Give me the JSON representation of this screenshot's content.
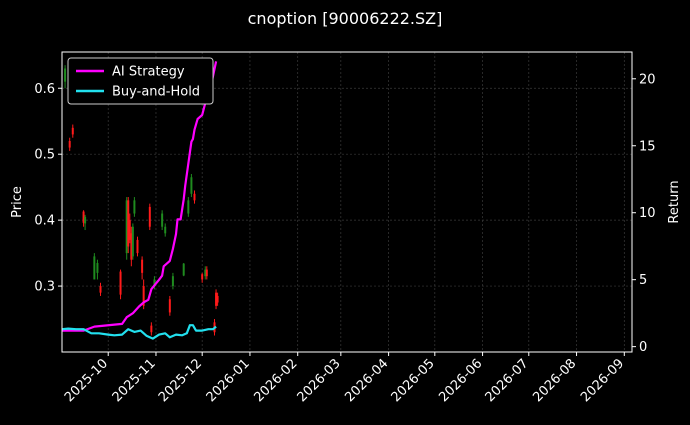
{
  "chart_data": {
    "type": "line",
    "title": "cnoption [90006222.SZ]",
    "ylabel_left": "Price",
    "ylabel_right": "Return",
    "xlim": [
      "2025-09-01",
      "2026-09-06"
    ],
    "ylim_left": [
      0.2,
      0.655
    ],
    "ylim_right": [
      -0.4,
      22.0
    ],
    "x_ticks": [
      "2025-10-01",
      "2025-11-01",
      "2025-12-01",
      "2026-01-01",
      "2026-02-01",
      "2026-03-01",
      "2026-04-01",
      "2026-05-01",
      "2026-06-01",
      "2026-07-01",
      "2026-08-01",
      "2026-09-01"
    ],
    "x_tick_labels": [
      "2025-10",
      "2025-11",
      "2025-12",
      "2026-01",
      "2026-02",
      "2026-03",
      "2026-04",
      "2026-05",
      "2026-06",
      "2026-07",
      "2026-08",
      "2026-09"
    ],
    "y_ticks_left": [
      0.3,
      0.4,
      0.5,
      0.6
    ],
    "y_tick_labels_left": [
      "0.3",
      "0.4",
      "0.5",
      "0.6"
    ],
    "y_ticks_right": [
      0,
      5,
      10,
      15,
      20
    ],
    "y_tick_labels_right": [
      "0",
      "5",
      "10",
      "15",
      "20"
    ],
    "grid": true,
    "legend_position": "top-left",
    "colors": {
      "background": "#000000",
      "up_candle": "#1f8b1f",
      "down_candle": "#ff1a1a",
      "ai_strategy": "#ff00ff",
      "buy_and_hold": "#22e0ee",
      "grid": "#3a3a3a"
    },
    "series": [
      {
        "name": "AI Strategy",
        "axis": "right",
        "points": [
          [
            "2025-09-01",
            1.2
          ],
          [
            "2025-09-15",
            1.2
          ],
          [
            "2025-09-22",
            1.5
          ],
          [
            "2025-10-10",
            1.7
          ],
          [
            "2025-10-13",
            2.2
          ],
          [
            "2025-10-17",
            2.5
          ],
          [
            "2025-10-21",
            3.0
          ],
          [
            "2025-10-24",
            3.3
          ],
          [
            "2025-10-27",
            3.5
          ],
          [
            "2025-10-29",
            4.3
          ],
          [
            "2025-11-03",
            5.0
          ],
          [
            "2025-11-05",
            5.3
          ],
          [
            "2025-11-06",
            6.0
          ],
          [
            "2025-11-10",
            6.4
          ],
          [
            "2025-11-12",
            7.3
          ],
          [
            "2025-11-14",
            8.4
          ],
          [
            "2025-11-15",
            9.5
          ],
          [
            "2025-11-17",
            9.5
          ],
          [
            "2025-11-19",
            11.0
          ],
          [
            "2025-11-20",
            12.0
          ],
          [
            "2025-11-24",
            15.3
          ],
          [
            "2025-11-25",
            15.5
          ],
          [
            "2025-11-26",
            16.2
          ],
          [
            "2025-11-28",
            17.0
          ],
          [
            "2025-12-01",
            17.3
          ],
          [
            "2025-12-03",
            18.2
          ],
          [
            "2025-12-05",
            18.6
          ],
          [
            "2025-12-08",
            20.2
          ],
          [
            "2025-12-10",
            21.3
          ]
        ]
      },
      {
        "name": "Buy-and-Hold",
        "axis": "right",
        "points": [
          [
            "2025-09-01",
            1.3
          ],
          [
            "2025-09-05",
            1.35
          ],
          [
            "2025-09-10",
            1.3
          ],
          [
            "2025-09-15",
            1.3
          ],
          [
            "2025-09-20",
            1.0
          ],
          [
            "2025-09-25",
            1.0
          ],
          [
            "2025-10-01",
            0.9
          ],
          [
            "2025-10-05",
            0.85
          ],
          [
            "2025-10-10",
            0.9
          ],
          [
            "2025-10-14",
            1.3
          ],
          [
            "2025-10-18",
            1.1
          ],
          [
            "2025-10-22",
            1.2
          ],
          [
            "2025-10-26",
            0.8
          ],
          [
            "2025-10-30",
            0.6
          ],
          [
            "2025-11-03",
            0.9
          ],
          [
            "2025-11-07",
            1.0
          ],
          [
            "2025-11-10",
            0.7
          ],
          [
            "2025-11-14",
            0.9
          ],
          [
            "2025-11-18",
            0.85
          ],
          [
            "2025-11-21",
            1.0
          ],
          [
            "2025-11-23",
            1.6
          ],
          [
            "2025-11-25",
            1.6
          ],
          [
            "2025-11-27",
            1.2
          ],
          [
            "2025-12-01",
            1.2
          ],
          [
            "2025-12-05",
            1.3
          ],
          [
            "2025-12-08",
            1.3
          ],
          [
            "2025-12-10",
            1.5
          ]
        ]
      }
    ],
    "candles": [
      {
        "date": "2025-09-03",
        "open": 0.61,
        "close": 0.63,
        "high": 0.635,
        "low": 0.6
      },
      {
        "date": "2025-09-06",
        "open": 0.52,
        "close": 0.51,
        "high": 0.525,
        "low": 0.505
      },
      {
        "date": "2025-09-08",
        "open": 0.54,
        "close": 0.53,
        "high": 0.545,
        "low": 0.525
      },
      {
        "date": "2025-09-15",
        "open": 0.413,
        "close": 0.396,
        "high": 0.415,
        "low": 0.39
      },
      {
        "date": "2025-09-16",
        "open": 0.395,
        "close": 0.405,
        "high": 0.408,
        "low": 0.385
      },
      {
        "date": "2025-09-22",
        "open": 0.31,
        "close": 0.345,
        "high": 0.35,
        "low": 0.31
      },
      {
        "date": "2025-09-24",
        "open": 0.32,
        "close": 0.335,
        "high": 0.34,
        "low": 0.31
      },
      {
        "date": "2025-09-26",
        "open": 0.3,
        "close": 0.29,
        "high": 0.305,
        "low": 0.285
      },
      {
        "date": "2025-10-09",
        "open": 0.322,
        "close": 0.287,
        "high": 0.325,
        "low": 0.28
      },
      {
        "date": "2025-10-13",
        "open": 0.35,
        "close": 0.43,
        "high": 0.435,
        "low": 0.34
      },
      {
        "date": "2025-10-14",
        "open": 0.43,
        "close": 0.36,
        "high": 0.435,
        "low": 0.35
      },
      {
        "date": "2025-10-15",
        "open": 0.4,
        "close": 0.37,
        "high": 0.41,
        "low": 0.365
      },
      {
        "date": "2025-10-16",
        "open": 0.38,
        "close": 0.34,
        "high": 0.39,
        "low": 0.33
      },
      {
        "date": "2025-10-17",
        "open": 0.345,
        "close": 0.39,
        "high": 0.395,
        "low": 0.34
      },
      {
        "date": "2025-10-18",
        "open": 0.41,
        "close": 0.43,
        "high": 0.435,
        "low": 0.405
      },
      {
        "date": "2025-10-20",
        "open": 0.37,
        "close": 0.35,
        "high": 0.375,
        "low": 0.345
      },
      {
        "date": "2025-10-23",
        "open": 0.34,
        "close": 0.32,
        "high": 0.345,
        "low": 0.31
      },
      {
        "date": "2025-10-24",
        "open": 0.3,
        "close": 0.27,
        "high": 0.31,
        "low": 0.265
      },
      {
        "date": "2025-10-28",
        "open": 0.42,
        "close": 0.39,
        "high": 0.425,
        "low": 0.385
      },
      {
        "date": "2025-10-29",
        "open": 0.24,
        "close": 0.23,
        "high": 0.245,
        "low": 0.225
      },
      {
        "date": "2025-10-31",
        "open": 0.3,
        "close": 0.31,
        "high": 0.315,
        "low": 0.295
      },
      {
        "date": "2025-11-05",
        "open": 0.39,
        "close": 0.41,
        "high": 0.415,
        "low": 0.385
      },
      {
        "date": "2025-11-07",
        "open": 0.38,
        "close": 0.39,
        "high": 0.395,
        "low": 0.375
      },
      {
        "date": "2025-11-10",
        "open": 0.28,
        "close": 0.26,
        "high": 0.285,
        "low": 0.255
      },
      {
        "date": "2025-11-12",
        "open": 0.3,
        "close": 0.315,
        "high": 0.32,
        "low": 0.295
      },
      {
        "date": "2025-11-19",
        "open": 0.316,
        "close": 0.334,
        "high": 0.335,
        "low": 0.315
      },
      {
        "date": "2025-11-22",
        "open": 0.41,
        "close": 0.43,
        "high": 0.435,
        "low": 0.405
      },
      {
        "date": "2025-11-24",
        "open": 0.44,
        "close": 0.465,
        "high": 0.47,
        "low": 0.435
      },
      {
        "date": "2025-11-26",
        "open": 0.44,
        "close": 0.43,
        "high": 0.445,
        "low": 0.425
      },
      {
        "date": "2025-12-01",
        "open": 0.318,
        "close": 0.31,
        "high": 0.32,
        "low": 0.305
      },
      {
        "date": "2025-12-03",
        "open": 0.315,
        "close": 0.325,
        "high": 0.33,
        "low": 0.31
      },
      {
        "date": "2025-12-04",
        "open": 0.325,
        "close": 0.315,
        "high": 0.33,
        "low": 0.31
      },
      {
        "date": "2025-12-09",
        "open": 0.245,
        "close": 0.23,
        "high": 0.25,
        "low": 0.225
      },
      {
        "date": "2025-12-10",
        "open": 0.29,
        "close": 0.27,
        "high": 0.295,
        "low": 0.265
      },
      {
        "date": "2025-12-11",
        "open": 0.285,
        "close": 0.275,
        "high": 0.29,
        "low": 0.27
      }
    ]
  }
}
